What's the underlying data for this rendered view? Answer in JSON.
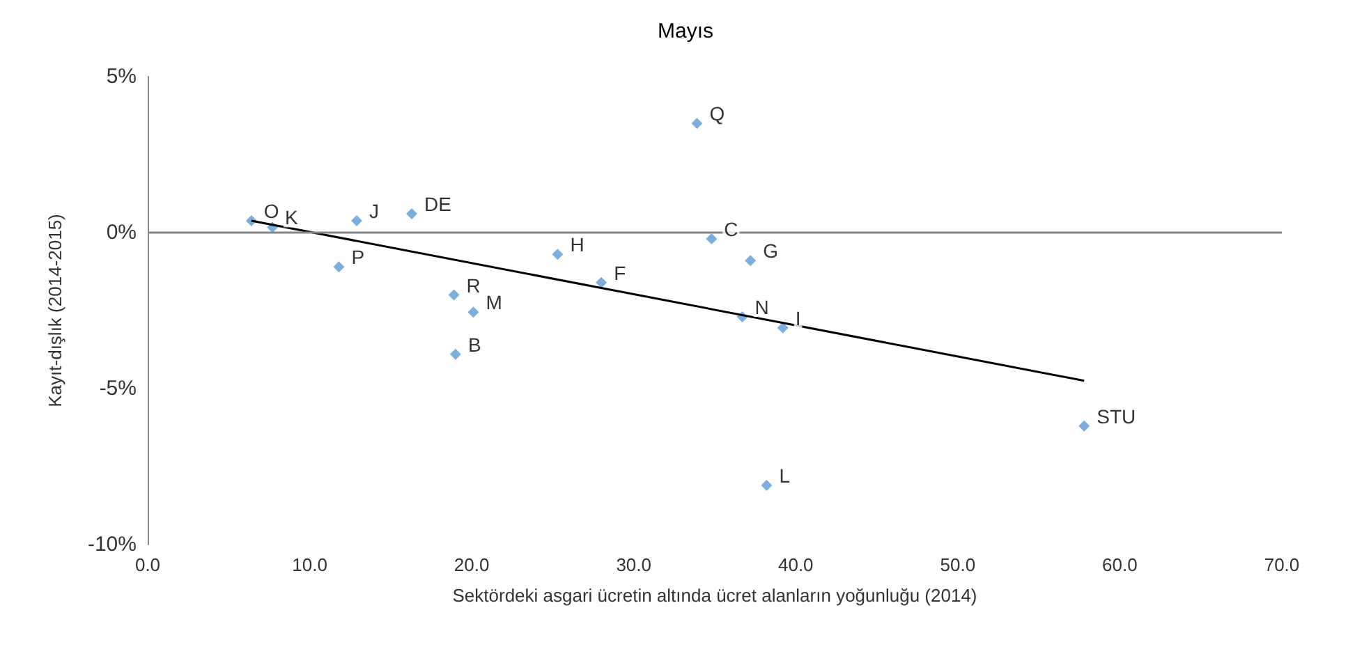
{
  "chart_data": {
    "type": "scatter",
    "title": "Mayıs",
    "xlabel": "Sektördeki asgari ücretin altında ücret alanların yoğunluğu (2014)",
    "ylabel": "Kayıt-dışlık (2014-2015)",
    "marker": "diamond",
    "grid": false,
    "xlim": [
      0,
      70
    ],
    "xticks": [
      {
        "value": 0,
        "label": "0.0"
      },
      {
        "value": 10,
        "label": "10.0"
      },
      {
        "value": 20,
        "label": "20.0"
      },
      {
        "value": 30,
        "label": "30.0"
      },
      {
        "value": 40,
        "label": "40.0"
      },
      {
        "value": 50,
        "label": "50.0"
      },
      {
        "value": 60,
        "label": "60.0"
      },
      {
        "value": 70,
        "label": "70.0"
      }
    ],
    "ylim": [
      -10,
      5
    ],
    "yticks": [
      {
        "value": -10,
        "label": "-10%"
      },
      {
        "value": -5,
        "label": "-5%"
      },
      {
        "value": 0,
        "label": "0%"
      },
      {
        "value": 5,
        "label": "5%"
      }
    ],
    "ref_lines": [
      {
        "axis": "y",
        "value": 0,
        "color": "#868686"
      }
    ],
    "series": [
      {
        "color": "#5b9bd5",
        "x": [
          6.4,
          7.7,
          12.9,
          16.3,
          11.8,
          25.3,
          28.0,
          18.9,
          20.1,
          19.0,
          33.9,
          34.8,
          37.2,
          36.7,
          39.2,
          38.2,
          57.8
        ],
        "values": [
          0.38,
          0.17,
          0.38,
          0.6,
          -1.1,
          -0.7,
          -1.6,
          -2.0,
          -2.55,
          -3.9,
          3.5,
          -0.2,
          -0.9,
          -2.7,
          -3.05,
          -8.1,
          -6.2
        ]
      },
      {
        "type": "line",
        "color": "#000000",
        "marker": "none",
        "x": [
          6.4,
          57.8
        ],
        "values": [
          0.38,
          -4.75
        ]
      }
    ],
    "annotations": [
      {
        "text": "O",
        "x": 6.4,
        "y": 0.38
      },
      {
        "text": "K",
        "x": 7.7,
        "y": 0.17
      },
      {
        "text": "J",
        "x": 12.9,
        "y": 0.38
      },
      {
        "text": "DE",
        "x": 16.3,
        "y": 0.6
      },
      {
        "text": "P",
        "x": 11.8,
        "y": -1.1
      },
      {
        "text": "H",
        "x": 25.3,
        "y": -0.7
      },
      {
        "text": "F",
        "x": 28.0,
        "y": -1.6
      },
      {
        "text": "R",
        "x": 18.9,
        "y": -2.0
      },
      {
        "text": "M",
        "x": 20.1,
        "y": -2.55
      },
      {
        "text": "B",
        "x": 19.0,
        "y": -3.9
      },
      {
        "text": "Q",
        "x": 33.9,
        "y": 3.5
      },
      {
        "text": "C",
        "x": 34.8,
        "y": -0.2
      },
      {
        "text": "G",
        "x": 37.2,
        "y": -0.9
      },
      {
        "text": "N",
        "x": 36.7,
        "y": -2.7
      },
      {
        "text": "I",
        "x": 39.2,
        "y": -3.05
      },
      {
        "text": "L",
        "x": 38.2,
        "y": -8.1
      },
      {
        "text": "STU",
        "x": 57.8,
        "y": -6.2
      }
    ]
  }
}
